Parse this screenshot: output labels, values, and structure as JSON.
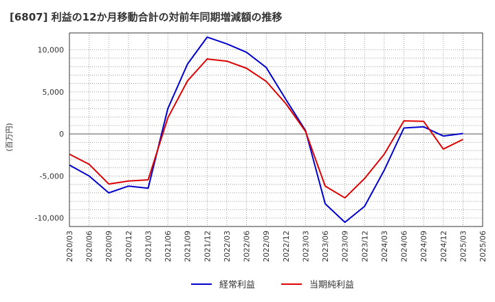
{
  "title": "[6807]  利益の12か月移動合計の対前年同期増減額の推移",
  "chart_data": {
    "type": "line",
    "title": "[6807]  利益の12か月移動合計の対前年同期増減額の推移",
    "xlabel": "",
    "ylabel": "(百万円)",
    "ylim": [
      -11000,
      12000
    ],
    "yticks": [
      10000,
      5000,
      0,
      -5000,
      -10000
    ],
    "ytick_labels": [
      "10,000",
      "5,000",
      "0",
      "-5,000",
      "-10,000"
    ],
    "categories": [
      "2020/03",
      "2020/06",
      "2020/09",
      "2020/12",
      "2021/03",
      "2021/06",
      "2021/09",
      "2021/12",
      "2022/03",
      "2022/06",
      "2022/09",
      "2022/12",
      "2023/03",
      "2023/06",
      "2023/09",
      "2023/12",
      "2024/03",
      "2024/06",
      "2024/09",
      "2024/12",
      "2025/03",
      "2025/06"
    ],
    "grid": true,
    "legend_position": "bottom-center",
    "series": [
      {
        "name": "経常利益",
        "color": "#0000cc",
        "values": [
          -3700,
          -5000,
          -7000,
          -6200,
          -6450,
          3000,
          8300,
          11500,
          10700,
          9700,
          7900,
          4100,
          400,
          -8300,
          -10500,
          -8600,
          -4300,
          700,
          850,
          -250,
          50,
          null
        ]
      },
      {
        "name": "当期純利益",
        "color": "#dd0000",
        "values": [
          -2400,
          -3600,
          -5950,
          -5600,
          -5450,
          1900,
          6300,
          8900,
          8650,
          7800,
          6250,
          3600,
          300,
          -6200,
          -7600,
          -5300,
          -2400,
          1550,
          1500,
          -1800,
          -650,
          null
        ]
      }
    ]
  }
}
